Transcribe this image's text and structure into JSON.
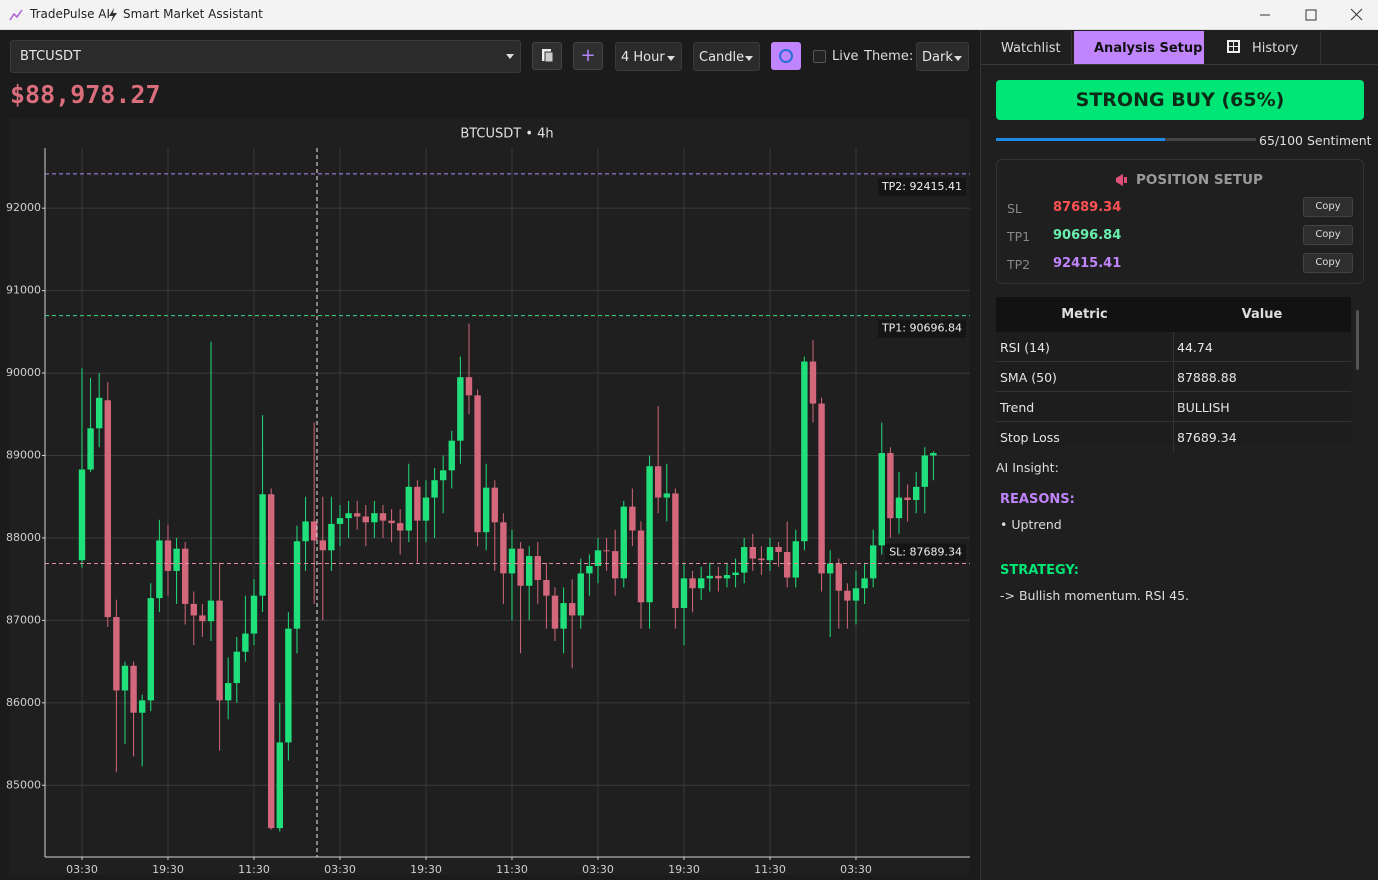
{
  "window": {
    "app_name": "TradePulse AI",
    "subtitle": "Smart Market Assistant"
  },
  "toolbar": {
    "symbol": "BTCUSDT",
    "timeframe": "4 Hour",
    "chart_style": "Candle",
    "live": "Live",
    "theme_label": "Theme:",
    "theme": "Dark",
    "price": "$88,978.27"
  },
  "sidebar": {
    "tabs": [
      "Watchlist",
      "Analysis Setup",
      "History"
    ],
    "signal": "STRONG BUY (65%)",
    "sentiment": {
      "value": 65,
      "max": 100,
      "label": "65/100 Sentiment"
    },
    "position": {
      "title": "POSITION SETUP",
      "rows": [
        {
          "name": "SL",
          "value": 87689.34,
          "button": "Copy"
        },
        {
          "name": "TP1",
          "value": 90696.84,
          "button": "Copy"
        },
        {
          "name": "TP2",
          "value": 92415.41,
          "button": "Copy"
        }
      ]
    },
    "table": {
      "headers": [
        "Metric",
        "Value"
      ],
      "rows": [
        [
          "RSI (14)",
          "44.74"
        ],
        [
          "SMA (50)",
          "87888.88"
        ],
        [
          "Trend",
          "BULLISH"
        ],
        [
          "Stop Loss",
          "87689.34"
        ]
      ]
    },
    "insight": {
      "title": "AI Insight:",
      "reasons_title": "REASONS:",
      "reasons": [
        "• Uptrend"
      ],
      "strategy_title": "STRATEGY:",
      "strategy": "-> Bullish momentum. RSI 45."
    }
  },
  "chart_data": {
    "type": "candlestick",
    "title": "BTCUSDT • 4h",
    "categories": [
      "03:30",
      null,
      null,
      null,
      null,
      null,
      null,
      null,
      null,
      null,
      "19:30",
      null,
      null,
      null,
      null,
      null,
      null,
      null,
      null,
      null,
      "11:30",
      null,
      null,
      null,
      null,
      null,
      null,
      null,
      null,
      null,
      "03:30",
      null,
      null,
      null,
      null,
      null,
      null,
      null,
      null,
      null,
      "19:30",
      null,
      null,
      null,
      null,
      null,
      null,
      null,
      null,
      null,
      "11:30",
      null,
      null,
      null,
      null,
      null,
      null,
      null,
      null,
      null,
      "03:30",
      null,
      null,
      null,
      null,
      null,
      null,
      null,
      null,
      null,
      "19:30",
      null,
      null,
      null,
      null,
      null,
      null,
      null,
      null,
      null,
      "11:30",
      null,
      null,
      null,
      null,
      null,
      null,
      null,
      null,
      null,
      "03:30",
      null,
      null,
      null,
      null,
      null,
      null,
      null,
      null,
      null
    ],
    "open": [
      87730,
      88830,
      89330,
      89670,
      87040,
      86150,
      86450,
      85880,
      86030,
      87270,
      87970,
      87600,
      87870,
      87200,
      87060,
      86990,
      87240,
      86030,
      86240,
      86620,
      86840,
      87300,
      88530,
      84480,
      85520,
      86900,
      87960,
      88200,
      87970,
      87850,
      88170,
      88240,
      88300,
      88260,
      88190,
      88300,
      88210,
      88180,
      88090,
      88620,
      88210,
      88490,
      88700,
      88820,
      89180,
      89950,
      89730,
      88070,
      88610,
      88190,
      87570,
      87870,
      87420,
      87780,
      87490,
      87300,
      86900,
      87210,
      87060,
      87570,
      87660,
      87850,
      87840,
      87510,
      88380,
      88090,
      87220,
      88870,
      88490,
      88540,
      87150,
      87510,
      87390,
      87510,
      87540,
      87510,
      87550,
      87580,
      87890,
      87750,
      87730,
      87890,
      87830,
      87520,
      87960,
      90140,
      89630,
      87570,
      87690,
      87360,
      87240,
      87390,
      87510,
      87910,
      89030,
      88240,
      88490,
      88460,
      88620,
      89000
    ],
    "high": [
      90060,
      89940,
      90000,
      89890,
      87250,
      86500,
      86500,
      86100,
      87450,
      88220,
      88160,
      88000,
      87950,
      87350,
      87200,
      90380,
      87700,
      86550,
      86800,
      87300,
      87500,
      89490,
      88600,
      86000,
      87100,
      88150,
      88500,
      89400,
      88500,
      88500,
      88400,
      88450,
      88450,
      88400,
      88450,
      88400,
      88350,
      88350,
      88900,
      88700,
      88700,
      88850,
      89000,
      89300,
      90200,
      90600,
      89800,
      88900,
      88700,
      88300,
      88100,
      87950,
      87900,
      87950,
      87700,
      87400,
      87400,
      87500,
      87750,
      87800,
      88000,
      88000,
      88100,
      88450,
      88600,
      88200,
      89000,
      89600,
      88900,
      88600,
      87700,
      87600,
      87650,
      87700,
      87650,
      87700,
      87750,
      88000,
      88050,
      87900,
      88000,
      87950,
      88200,
      88100,
      90200,
      90400,
      89700,
      87850,
      87750,
      87450,
      87600,
      87700,
      88100,
      89400,
      89100,
      88800,
      88650,
      88800,
      89100,
      89050
    ],
    "low": [
      87640,
      88800,
      89100,
      86920,
      85160,
      85500,
      85350,
      85230,
      85900,
      87100,
      87300,
      87200,
      86950,
      86700,
      86800,
      86750,
      85420,
      85800,
      86000,
      86500,
      86700,
      87100,
      84460,
      84440,
      85300,
      86600,
      87600,
      87200,
      87000,
      87600,
      87900,
      88000,
      88100,
      87900,
      88000,
      88000,
      87950,
      87800,
      87950,
      87700,
      87950,
      88000,
      88300,
      88600,
      88900,
      89500,
      87900,
      87850,
      87600,
      87200,
      87000,
      86600,
      87000,
      87200,
      86900,
      86750,
      86600,
      86420,
      86900,
      87300,
      87450,
      87600,
      87300,
      87400,
      87900,
      86900,
      86900,
      88300,
      88200,
      86900,
      86700,
      87100,
      87250,
      87350,
      87350,
      87400,
      87400,
      87450,
      87600,
      87550,
      87600,
      87650,
      87400,
      87400,
      87850,
      89400,
      87350,
      86800,
      86900,
      86900,
      86950,
      87200,
      87400,
      87800,
      88000,
      88050,
      88200,
      88300,
      88300,
      88700
    ],
    "close": [
      88830,
      89330,
      89700,
      87040,
      86150,
      86450,
      85880,
      86030,
      87270,
      87970,
      87600,
      87870,
      87200,
      87060,
      86990,
      87240,
      86030,
      86240,
      86620,
      86840,
      87300,
      88530,
      84480,
      85520,
      86900,
      87960,
      88200,
      87970,
      87850,
      88170,
      88240,
      88300,
      88260,
      88190,
      88300,
      88210,
      88180,
      88090,
      88620,
      88210,
      88490,
      88700,
      88820,
      89180,
      89950,
      89730,
      88070,
      88610,
      88190,
      87570,
      87870,
      87420,
      87780,
      87490,
      87300,
      86900,
      87210,
      87060,
      87570,
      87660,
      87850,
      87840,
      87510,
      88380,
      88090,
      87220,
      88870,
      88490,
      88540,
      87150,
      87510,
      87390,
      87510,
      87540,
      87510,
      87550,
      87580,
      87890,
      87750,
      87730,
      87890,
      87830,
      87520,
      87960,
      90140,
      89630,
      87570,
      87690,
      87360,
      87240,
      87390,
      87510,
      87910,
      89030,
      88240,
      88490,
      88460,
      88620,
      89000,
      89030
    ],
    "up_color": "#1fe07a",
    "down_color": "#d3677b",
    "ylim": [
      84130,
      92730
    ],
    "yticks": [
      85000,
      86000,
      87000,
      88000,
      89000,
      90000,
      91000,
      92000
    ],
    "grid": true,
    "hlines": [
      {
        "label": "TP2: 92415.41",
        "value": 92415.41,
        "color": "#b388ff"
      },
      {
        "label": "TP1: 90696.84",
        "value": 90696.84,
        "color": "#39d98a"
      },
      {
        "label": "SL: 87689.34",
        "value": 87689.34,
        "color": "#e58ba0"
      }
    ]
  }
}
